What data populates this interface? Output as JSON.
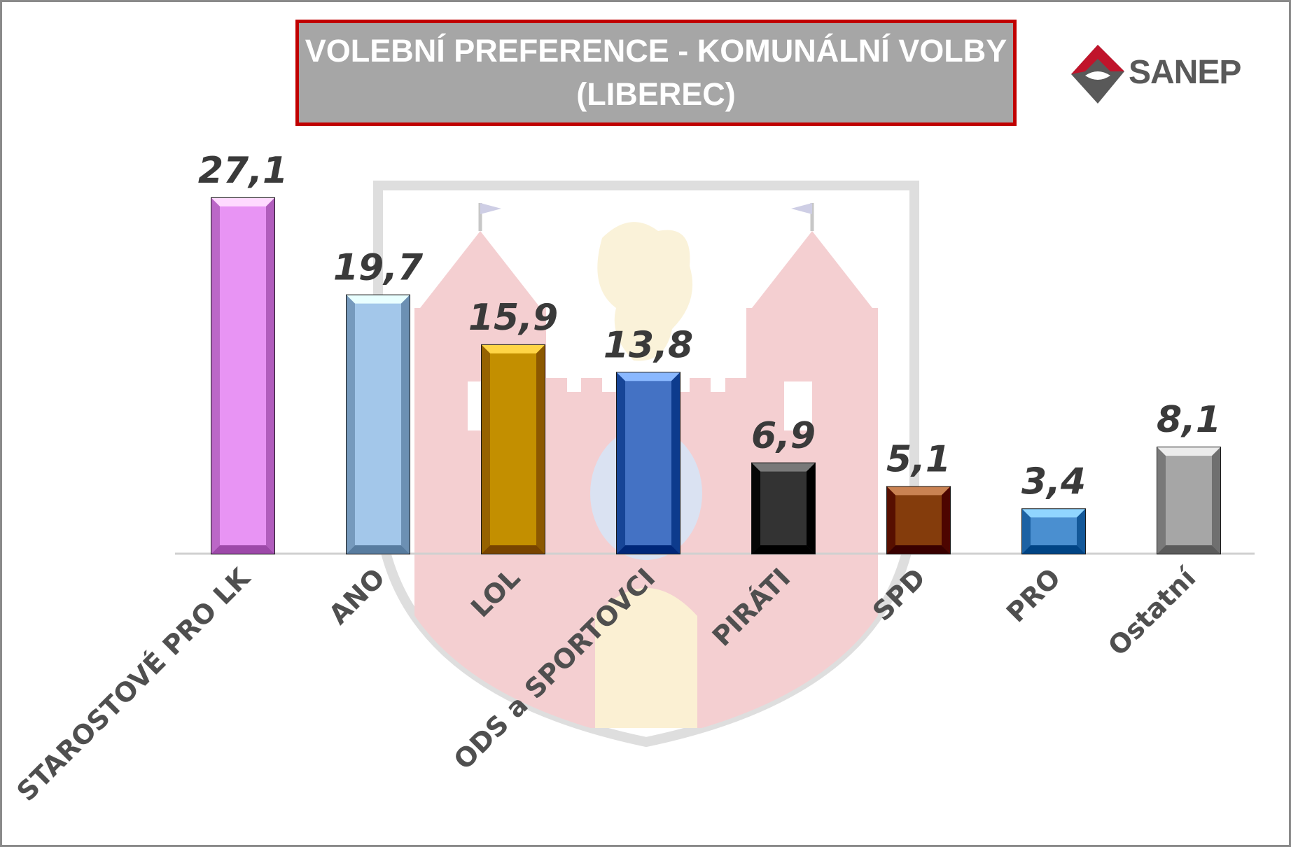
{
  "title": {
    "line1": "VOLEBNÍ PREFERENCE - KOMUNÁLNÍ VOLBY",
    "line2": "(LIBEREC)"
  },
  "logo": {
    "text": "SANEP",
    "icon": "sanep-diamond-logo",
    "colors": {
      "red": "#c0142b",
      "gray": "#595959"
    }
  },
  "background_emblem": "liberec-coat-of-arms-watermark",
  "chart_data": {
    "type": "bar",
    "categories": [
      "STAROSTOVÉ PRO LK",
      "ANO",
      "LOL",
      "ODS a SPORTOVCI",
      "PIRÁTI",
      "SPD",
      "PRO",
      "Ostatní"
    ],
    "values": [
      27.1,
      19.7,
      15.9,
      13.8,
      6.9,
      5.1,
      3.4,
      8.1
    ],
    "value_labels": [
      "27,1",
      "19,7",
      "15,9",
      "13,8",
      "6,9",
      "5,1",
      "3,4",
      "8,1"
    ],
    "colors": [
      "#e894f4",
      "#a3c7ea",
      "#c38f00",
      "#4472c4",
      "#333333",
      "#843c0c",
      "#4a8fd0",
      "#a6a6a6"
    ],
    "title": "VOLEBNÍ PREFERENCE - KOMUNÁLNÍ VOLBY (LIBEREC)",
    "xlabel": "",
    "ylabel": "",
    "ylim": [
      0,
      30
    ],
    "grid": false,
    "legend": "none"
  }
}
